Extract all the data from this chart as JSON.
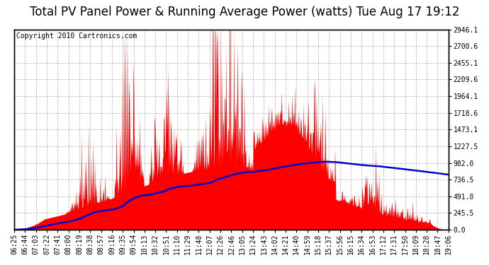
{
  "title": "Total PV Panel Power & Running Average Power (watts) Tue Aug 17 19:12",
  "copyright": "Copyright 2010 Cartronics.com",
  "ylabel_right": [
    "0.0",
    "245.5",
    "491.0",
    "736.5",
    "982.0",
    "1227.5",
    "1473.1",
    "1718.6",
    "1964.1",
    "2209.6",
    "2455.1",
    "2700.6",
    "2946.1"
  ],
  "ylabel_right_vals": [
    0.0,
    245.5,
    491.0,
    736.5,
    982.0,
    1227.5,
    1473.1,
    1718.6,
    1964.1,
    2209.6,
    2455.1,
    2700.6,
    2946.1
  ],
  "ymax": 2946.1,
  "ymin": 0.0,
  "background_color": "#ffffff",
  "plot_bg_color": "#ffffff",
  "grid_color": "#bbbbbb",
  "fill_color": "#ff0000",
  "line_color": "#0000cc",
  "title_fontsize": 12,
  "copyright_fontsize": 7,
  "tick_fontsize": 7,
  "xtick_labels": [
    "06:25",
    "06:44",
    "07:03",
    "07:22",
    "07:41",
    "08:00",
    "08:19",
    "08:38",
    "08:57",
    "09:16",
    "09:35",
    "09:54",
    "10:13",
    "10:32",
    "10:51",
    "11:10",
    "11:29",
    "11:48",
    "12:07",
    "12:26",
    "12:46",
    "13:05",
    "13:24",
    "13:43",
    "14:02",
    "14:21",
    "14:40",
    "14:59",
    "15:18",
    "15:37",
    "15:56",
    "16:15",
    "16:34",
    "16:53",
    "17:12",
    "17:31",
    "17:50",
    "18:09",
    "18:28",
    "18:47",
    "19:06"
  ]
}
